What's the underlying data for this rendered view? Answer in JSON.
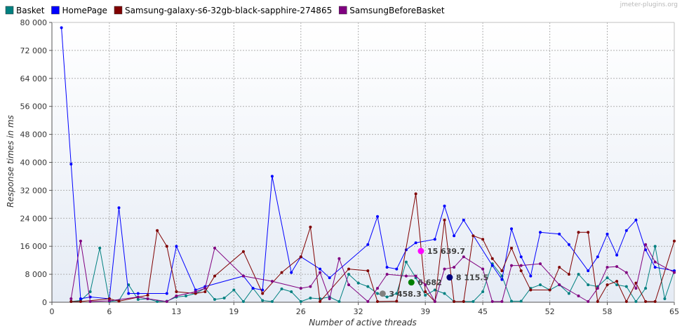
{
  "watermark": "jmeter-plugins.org",
  "chart_data": {
    "type": "line",
    "title": "",
    "xlabel": "Number of active threads",
    "ylabel": "Response times in ms",
    "xlim": [
      0,
      65
    ],
    "ylim": [
      0,
      80000
    ],
    "xticks": [
      0,
      6,
      13,
      19,
      26,
      32,
      39,
      45,
      52,
      58,
      65
    ],
    "xtick_labels": [
      "0",
      "6",
      "13",
      "19",
      "26",
      "32",
      "39",
      "45",
      "52",
      "58",
      "65"
    ],
    "yticks": [
      0,
      8000,
      16000,
      24000,
      32000,
      40000,
      48000,
      56000,
      64000,
      72000,
      80000
    ],
    "ytick_labels": [
      "0",
      "8 000",
      "16 000",
      "24 000",
      "32 000",
      "40 000",
      "48 000",
      "56 000",
      "64 000",
      "72 000",
      "80 000"
    ],
    "grid": true,
    "legend_position": "top",
    "series": [
      {
        "name": "Basket",
        "color": "#008080",
        "points": [
          [
            2,
            200
          ],
          [
            3,
            500
          ],
          [
            4,
            3000
          ],
          [
            5,
            15500
          ],
          [
            6,
            200
          ],
          [
            7,
            500
          ],
          [
            8,
            5000
          ],
          [
            9,
            800
          ],
          [
            10,
            1000
          ],
          [
            11,
            200
          ],
          [
            12,
            300
          ],
          [
            13,
            1500
          ],
          [
            14,
            1800
          ],
          [
            15,
            2500
          ],
          [
            16,
            4000
          ],
          [
            17,
            800
          ],
          [
            18,
            1200
          ],
          [
            19,
            3500
          ],
          [
            20,
            200
          ],
          [
            21,
            4000
          ],
          [
            22,
            500
          ],
          [
            23,
            200
          ],
          [
            24,
            3800
          ],
          [
            25,
            3000
          ],
          [
            26,
            200
          ],
          [
            27,
            1200
          ],
          [
            28,
            1000
          ],
          [
            29,
            1500
          ],
          [
            30,
            200
          ],
          [
            31,
            8000
          ],
          [
            32,
            5500
          ],
          [
            33,
            4500
          ],
          [
            34,
            2500
          ],
          [
            35,
            1500
          ],
          [
            36,
            2500
          ],
          [
            37,
            11500
          ],
          [
            38,
            7000
          ],
          [
            39,
            2000
          ],
          [
            40,
            3500
          ],
          [
            41,
            2500
          ],
          [
            42,
            200
          ],
          [
            43,
            200
          ],
          [
            44,
            200
          ],
          [
            45,
            3000
          ],
          [
            46,
            11000
          ],
          [
            47,
            7500
          ],
          [
            48,
            300
          ],
          [
            49,
            300
          ],
          [
            50,
            4000
          ],
          [
            51,
            5000
          ],
          [
            52,
            3500
          ],
          [
            53,
            5000
          ],
          [
            54,
            2500
          ],
          [
            55,
            8000
          ],
          [
            56,
            5000
          ],
          [
            57,
            4500
          ],
          [
            58,
            7000
          ],
          [
            59,
            5000
          ],
          [
            60,
            4500
          ],
          [
            61,
            200
          ],
          [
            62,
            4000
          ],
          [
            63,
            16000
          ],
          [
            64,
            1000
          ],
          [
            65,
            9000
          ]
        ]
      },
      {
        "name": "HomePage",
        "color": "#0000ff",
        "points": [
          [
            1,
            78500
          ],
          [
            2,
            39500
          ],
          [
            3,
            1000
          ],
          [
            4,
            1500
          ],
          [
            6,
            1000
          ],
          [
            7,
            27000
          ],
          [
            8,
            2500
          ],
          [
            9,
            2500
          ],
          [
            12,
            2500
          ],
          [
            13,
            16000
          ],
          [
            15,
            3500
          ],
          [
            16,
            4500
          ],
          [
            20,
            7500
          ],
          [
            21,
            4000
          ],
          [
            22,
            3500
          ],
          [
            23,
            36000
          ],
          [
            25,
            8500
          ],
          [
            26,
            13000
          ],
          [
            28,
            9500
          ],
          [
            29,
            7000
          ],
          [
            33,
            16500
          ],
          [
            34,
            24500
          ],
          [
            35,
            10000
          ],
          [
            36,
            9500
          ],
          [
            37,
            15000
          ],
          [
            38,
            17000
          ],
          [
            40,
            18000
          ],
          [
            41,
            27500
          ],
          [
            42,
            19000
          ],
          [
            43,
            23500
          ],
          [
            46,
            10500
          ],
          [
            47,
            6500
          ],
          [
            48,
            21000
          ],
          [
            49,
            13000
          ],
          [
            50,
            7500
          ],
          [
            51,
            20000
          ],
          [
            53,
            19500
          ],
          [
            54,
            16500
          ],
          [
            56,
            9000
          ],
          [
            57,
            13000
          ],
          [
            58,
            19500
          ],
          [
            59,
            13500
          ],
          [
            60,
            20500
          ],
          [
            61,
            23500
          ],
          [
            62,
            15000
          ],
          [
            63,
            10000
          ],
          [
            65,
            9000
          ]
        ]
      },
      {
        "name": "Samsung-galaxy-s6-32gb-black-sapphire-274865",
        "color": "#800000",
        "points": [
          [
            2,
            200
          ],
          [
            3,
            200
          ],
          [
            6,
            1000
          ],
          [
            7,
            300
          ],
          [
            10,
            2000
          ],
          [
            11,
            20500
          ],
          [
            12,
            16000
          ],
          [
            13,
            3000
          ],
          [
            15,
            2500
          ],
          [
            16,
            3000
          ],
          [
            17,
            7500
          ],
          [
            20,
            14500
          ],
          [
            22,
            2500
          ],
          [
            24,
            8500
          ],
          [
            26,
            13000
          ],
          [
            27,
            21500
          ],
          [
            28,
            200
          ],
          [
            31,
            9500
          ],
          [
            33,
            9000
          ],
          [
            34,
            200
          ],
          [
            36,
            300
          ],
          [
            38,
            31000
          ],
          [
            39,
            3000
          ],
          [
            40,
            200
          ],
          [
            41,
            23500
          ],
          [
            42,
            200
          ],
          [
            43,
            200
          ],
          [
            44,
            19000
          ],
          [
            45,
            18000
          ],
          [
            46,
            12500
          ],
          [
            47,
            9000
          ],
          [
            48,
            15500
          ],
          [
            49,
            9000
          ],
          [
            50,
            3500
          ],
          [
            52,
            3500
          ],
          [
            53,
            10000
          ],
          [
            54,
            8000
          ],
          [
            55,
            20000
          ],
          [
            56,
            20000
          ],
          [
            57,
            200
          ],
          [
            58,
            5000
          ],
          [
            59,
            6000
          ],
          [
            60,
            200
          ],
          [
            61,
            5500
          ],
          [
            62,
            200
          ],
          [
            63,
            200
          ],
          [
            65,
            17500
          ]
        ]
      },
      {
        "name": "SamsungBeforeBasket",
        "color": "#800080",
        "points": [
          [
            2,
            1000
          ],
          [
            3,
            17500
          ],
          [
            4,
            200
          ],
          [
            6,
            400
          ],
          [
            9,
            1500
          ],
          [
            10,
            1000
          ],
          [
            12,
            200
          ],
          [
            13,
            1800
          ],
          [
            15,
            3000
          ],
          [
            16,
            4000
          ],
          [
            17,
            15500
          ],
          [
            20,
            7500
          ],
          [
            23,
            6000
          ],
          [
            26,
            4000
          ],
          [
            27,
            4500
          ],
          [
            28,
            8500
          ],
          [
            29,
            1000
          ],
          [
            30,
            12500
          ],
          [
            31,
            5000
          ],
          [
            33,
            200
          ],
          [
            34,
            4000
          ],
          [
            35,
            8000
          ],
          [
            37,
            7500
          ],
          [
            38,
            7500
          ],
          [
            39,
            5000
          ],
          [
            40,
            200
          ],
          [
            41,
            9500
          ],
          [
            42,
            10000
          ],
          [
            43,
            13000
          ],
          [
            45,
            9500
          ],
          [
            46,
            200
          ],
          [
            47,
            200
          ],
          [
            48,
            10500
          ],
          [
            49,
            10500
          ],
          [
            51,
            11000
          ],
          [
            53,
            5000
          ],
          [
            55,
            1800
          ],
          [
            56,
            200
          ],
          [
            57,
            4000
          ],
          [
            58,
            10000
          ],
          [
            59,
            10200
          ],
          [
            60,
            8500
          ],
          [
            61,
            4000
          ],
          [
            62,
            16500
          ],
          [
            63,
            11500
          ],
          [
            65,
            8500
          ]
        ]
      }
    ],
    "annotations": [
      {
        "label": "15 639.7",
        "x": 39.2,
        "y": 15639.7,
        "color": "#ff00ff"
      },
      {
        "label": "8 115.5",
        "x": 42.2,
        "y": 8115.5,
        "color": "#000080"
      },
      {
        "label": "6 682",
        "x": 38.2,
        "y": 6682,
        "color": "#008000"
      },
      {
        "label": "3 458.3",
        "x": 35.2,
        "y": 3458.3,
        "color": "#808080"
      }
    ]
  }
}
